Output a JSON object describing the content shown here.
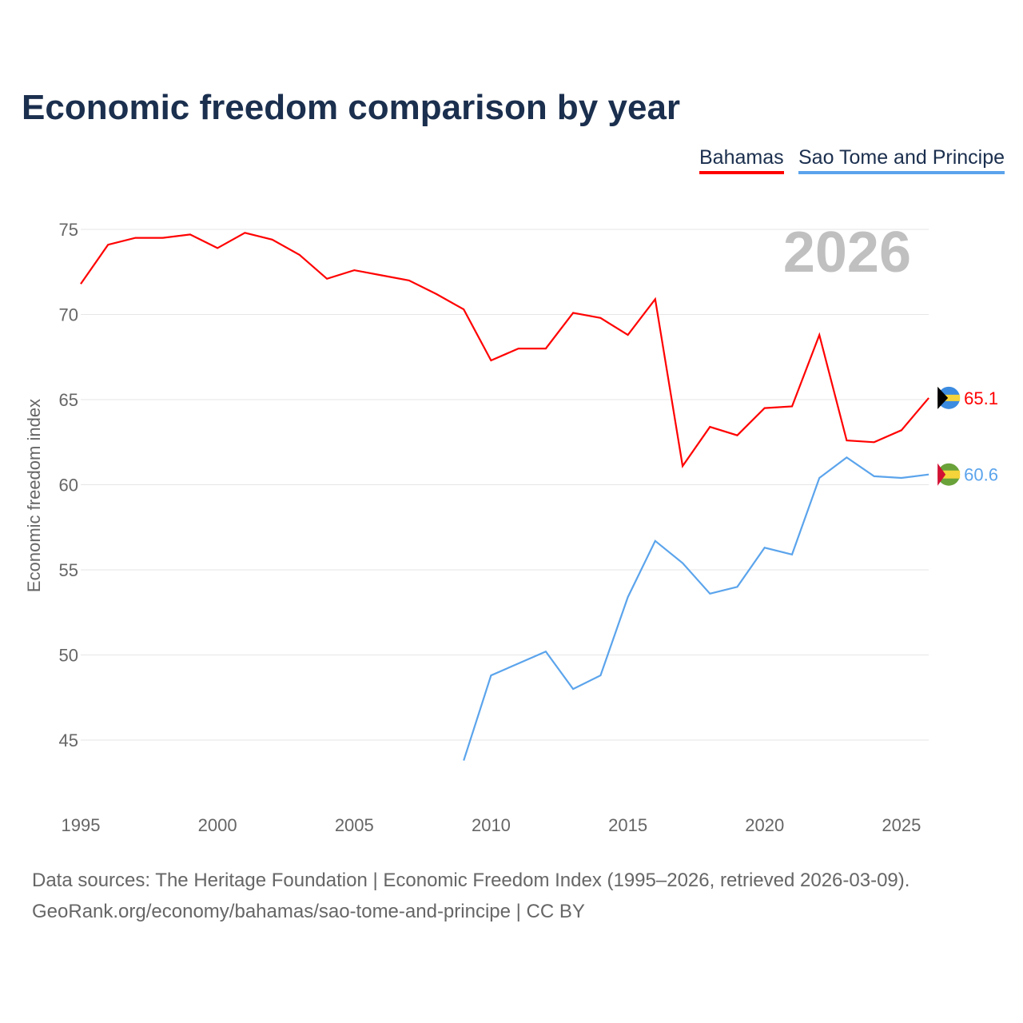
{
  "chart_data": {
    "type": "line",
    "title": "Economic freedom comparison by year",
    "xlabel": "",
    "ylabel": "Economic freedom index",
    "xlim": [
      1995,
      2026
    ],
    "ylim": [
      42,
      77
    ],
    "x_ticks": [
      "1995",
      "2000",
      "2005",
      "2010",
      "2015",
      "2020",
      "2025"
    ],
    "y_ticks": [
      "45",
      "50",
      "55",
      "60",
      "65",
      "70",
      "75"
    ],
    "grid": true,
    "legend_position": "top-right",
    "year_watermark": "2026",
    "series": [
      {
        "name": "Bahamas",
        "color": "#ff0000",
        "end_label": "65.1",
        "x": [
          1995,
          1996,
          1997,
          1998,
          1999,
          2000,
          2001,
          2002,
          2003,
          2004,
          2005,
          2006,
          2007,
          2008,
          2009,
          2010,
          2011,
          2012,
          2013,
          2014,
          2015,
          2016,
          2017,
          2018,
          2019,
          2020,
          2021,
          2022,
          2023,
          2024,
          2025,
          2026
        ],
        "values": [
          71.8,
          74.1,
          74.5,
          74.5,
          74.7,
          73.9,
          74.8,
          74.4,
          73.5,
          72.1,
          72.6,
          72.3,
          72.0,
          71.2,
          70.3,
          67.3,
          68.0,
          68.0,
          70.1,
          69.8,
          68.8,
          70.9,
          61.1,
          63.4,
          62.9,
          64.5,
          64.6,
          68.8,
          62.6,
          62.5,
          63.2,
          65.1
        ]
      },
      {
        "name": "Sao Tome and Principe",
        "color": "#5ba4ec",
        "end_label": "60.6",
        "x": [
          2009,
          2010,
          2011,
          2012,
          2013,
          2014,
          2015,
          2016,
          2017,
          2018,
          2019,
          2020,
          2021,
          2022,
          2023,
          2024,
          2025,
          2026
        ],
        "values": [
          43.8,
          48.8,
          49.5,
          50.2,
          48.0,
          48.8,
          53.4,
          56.7,
          55.4,
          53.6,
          54.0,
          56.3,
          55.9,
          60.4,
          61.6,
          60.5,
          60.4,
          60.6
        ]
      }
    ]
  },
  "footer": {
    "line1": "Data sources: The Heritage Foundation | Economic Freedom Index (1995–2026, retrieved 2026-03-09).",
    "line2": "GeoRank.org/economy/bahamas/sao-tome-and-principe | CC BY"
  }
}
